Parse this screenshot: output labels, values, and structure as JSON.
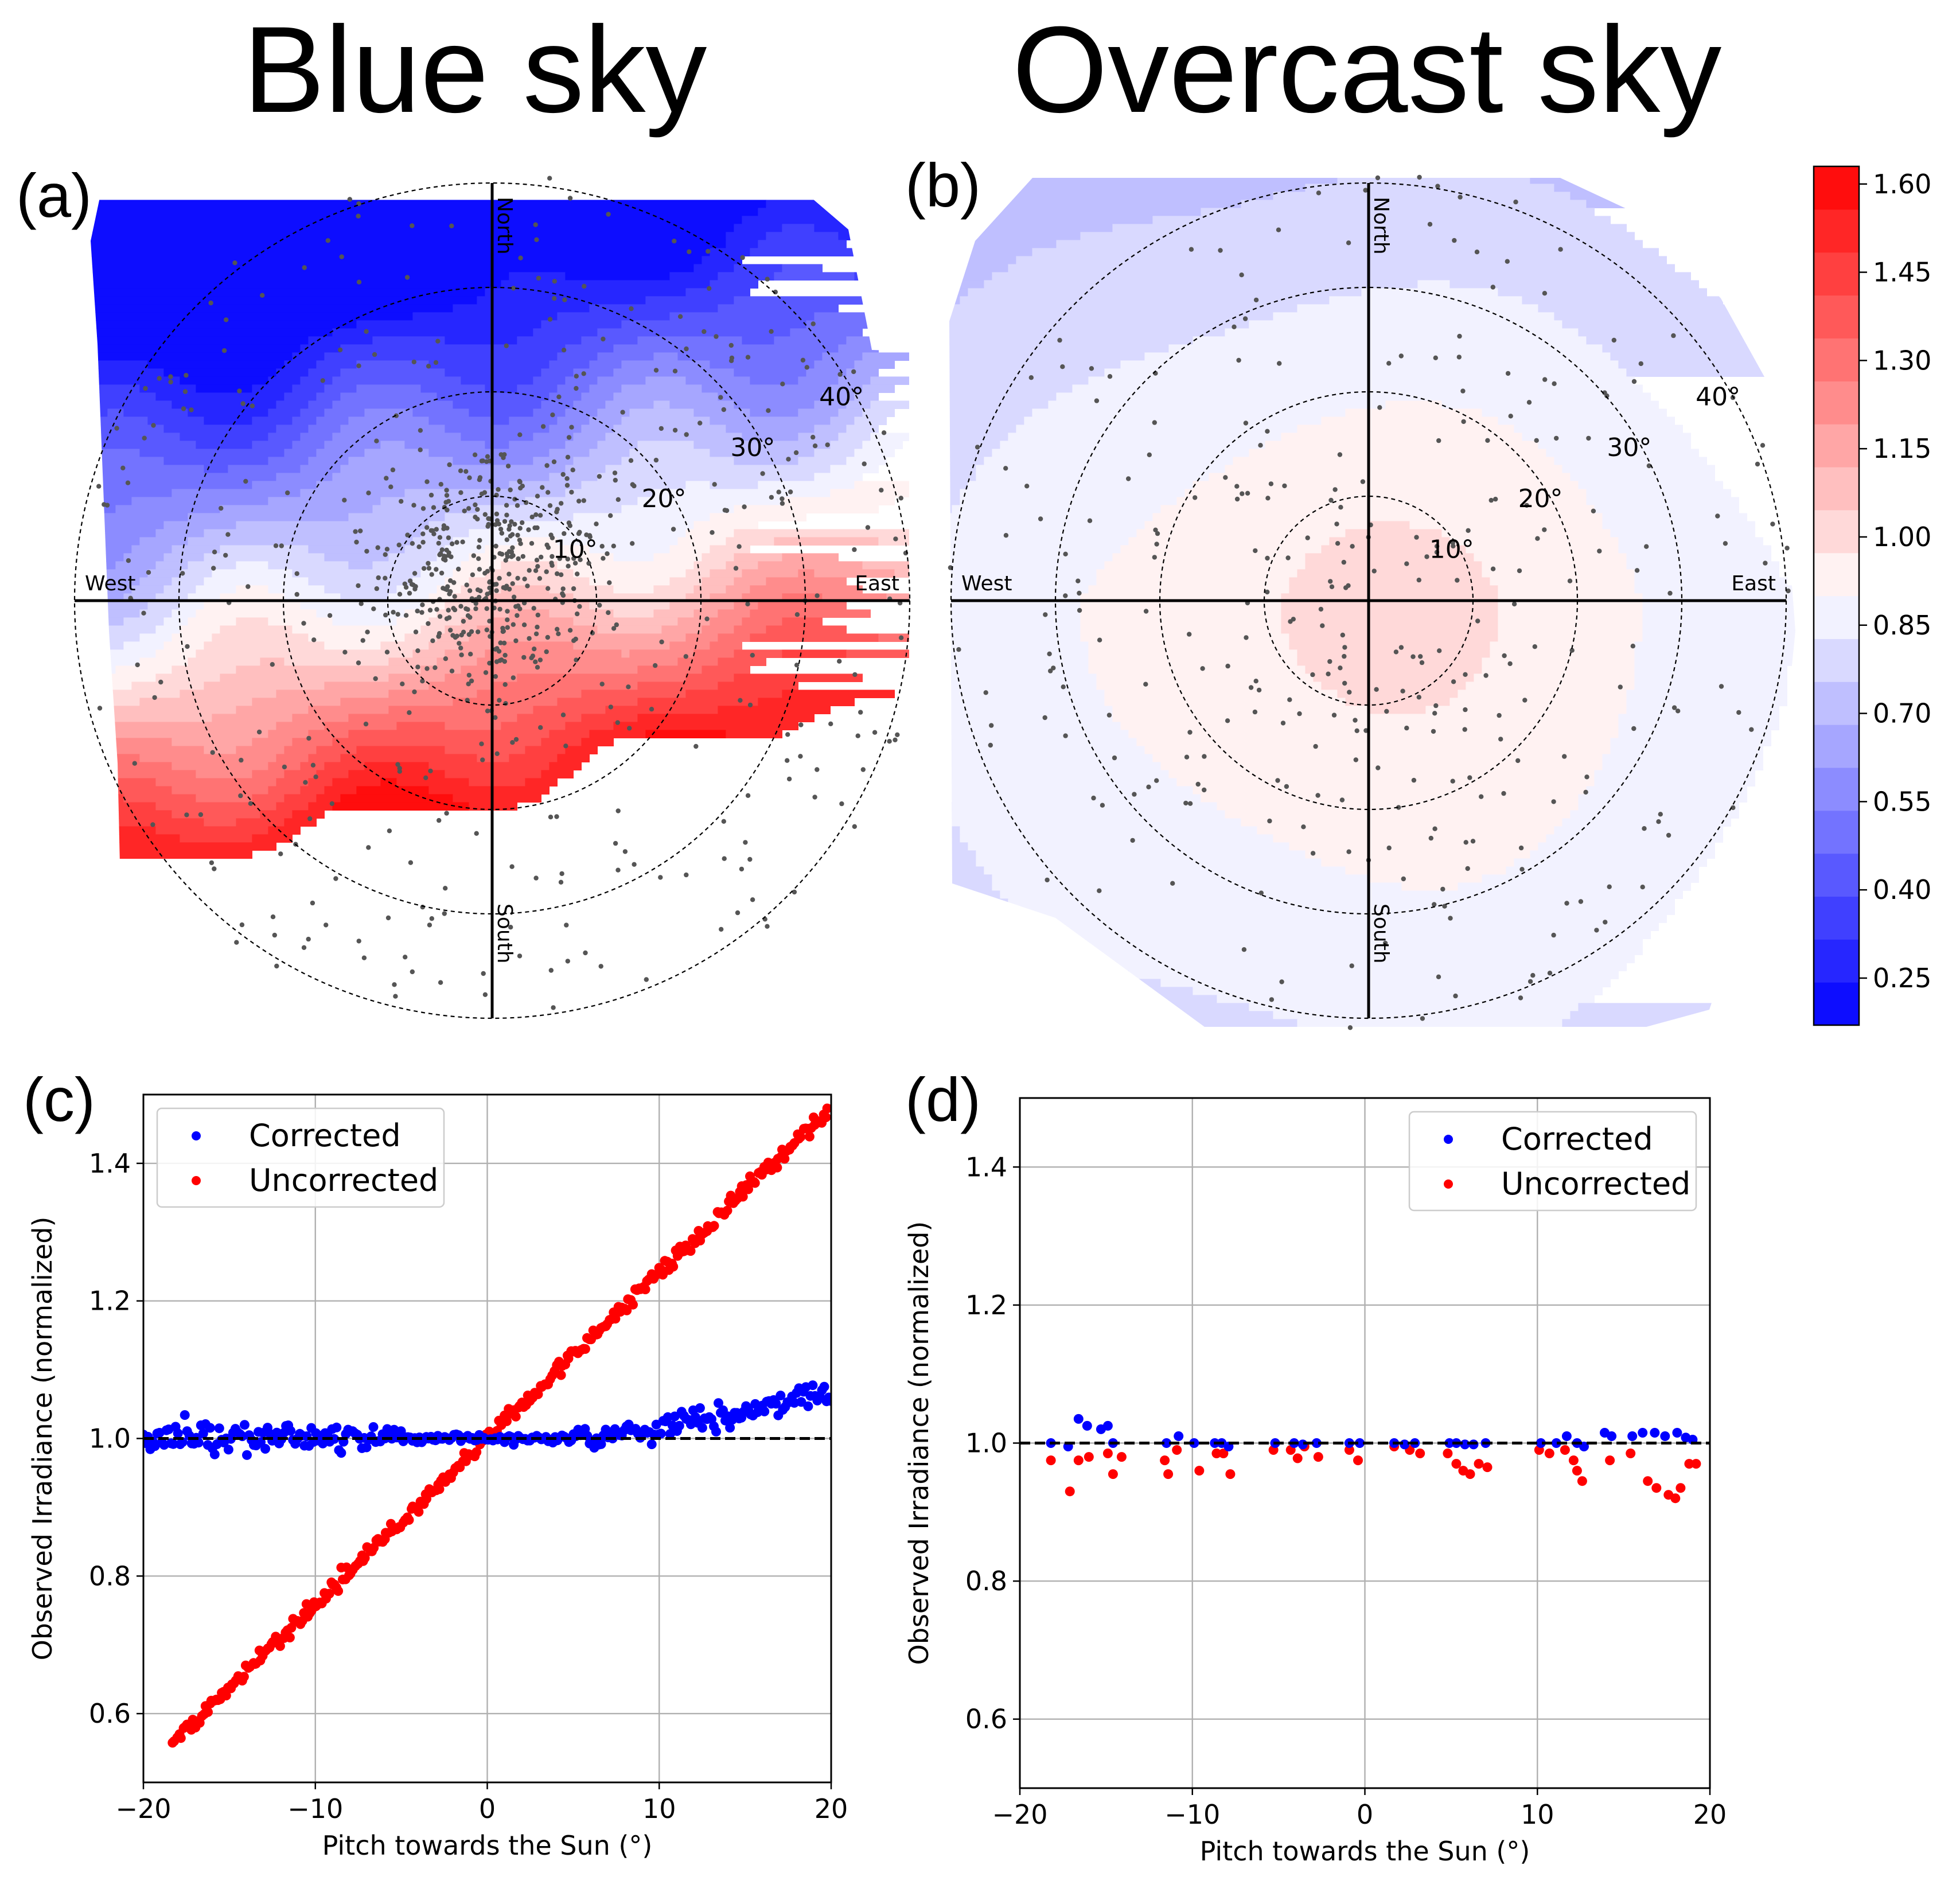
{
  "titles": {
    "left": "Blue sky",
    "right": "Overcast sky"
  },
  "panel_labels": {
    "a": "(a)",
    "b": "(b)",
    "c": "(c)",
    "d": "(d)"
  },
  "colors": {
    "corrected": "#0000ff",
    "uncorrected": "#ff0000",
    "dots": "#555555"
  },
  "chart_data": [
    {
      "id": "a",
      "type": "heatmap",
      "projection": "polar",
      "title": "Blue sky",
      "ring_labels": [
        "10°",
        "20°",
        "30°",
        "40°"
      ],
      "rings_deg": [
        10,
        20,
        30,
        40
      ],
      "direction_labels": {
        "north": "North",
        "south": "South",
        "east": "East",
        "west": "West"
      },
      "colormap": "bwr",
      "value_range": [
        0.17,
        1.63
      ],
      "ratio_north_edge": 0.2,
      "ratio_south_edge": 1.6,
      "description_values": {
        "north_region": 0.25,
        "zenith": 1.0,
        "south_region": 1.55
      }
    },
    {
      "id": "b",
      "type": "heatmap",
      "projection": "polar",
      "title": "Overcast sky",
      "ring_labels": [
        "10°",
        "20°",
        "30°",
        "40°"
      ],
      "rings_deg": [
        10,
        20,
        30,
        40
      ],
      "direction_labels": {
        "north": "North",
        "south": "South",
        "east": "East",
        "west": "West"
      },
      "colormap": "bwr",
      "value_range": [
        0.17,
        1.63
      ],
      "ratio_north_edge": 0.85,
      "ratio_south_edge": 0.9
    },
    {
      "id": "colorbar",
      "type": "colorbar",
      "ticks": [
        "1.60",
        "1.45",
        "1.30",
        "1.15",
        "1.00",
        "0.85",
        "0.70",
        "0.55",
        "0.40",
        "0.25"
      ],
      "tick_values": [
        1.6,
        1.45,
        1.3,
        1.15,
        1.0,
        0.85,
        0.7,
        0.55,
        0.4,
        0.25
      ],
      "min": 0.17,
      "max": 1.63,
      "levels": 20
    },
    {
      "id": "c",
      "type": "scatter",
      "xlabel": "Pitch towards the Sun (°)",
      "ylabel": "Observed Irradiance (normalized)",
      "xlim": [
        -20,
        20
      ],
      "ylim": [
        0.5,
        1.5
      ],
      "xticks": [
        "−20",
        "−10",
        "0",
        "10",
        "20"
      ],
      "xtick_values": [
        -20,
        -10,
        0,
        10,
        20
      ],
      "yticks": [
        "0.6",
        "0.8",
        "1.0",
        "1.2",
        "1.4"
      ],
      "ytick_values": [
        0.6,
        0.8,
        1.0,
        1.2,
        1.4
      ],
      "reference_line": 1.0,
      "legend_position": "upper-left",
      "series": [
        {
          "name": "Corrected",
          "model": "flat_then_rise",
          "x_range": [
            -20,
            20
          ],
          "n": 300,
          "base": 1.0,
          "rise_start": 5,
          "rise_end_value": 1.07,
          "noise": 0.012
        },
        {
          "name": "Uncorrected",
          "model": "linear",
          "x_range": [
            -18.3,
            19.8
          ],
          "n": 320,
          "slope": 0.0241,
          "intercept": 1.0,
          "noise": 0.008
        }
      ]
    },
    {
      "id": "d",
      "type": "scatter",
      "xlabel": "Pitch towards the Sun (°)",
      "ylabel": "Observed Irradiance (normalized)",
      "xlim": [
        -20,
        20
      ],
      "ylim": [
        0.5,
        1.5
      ],
      "xticks": [
        "−20",
        "−10",
        "0",
        "10",
        "20"
      ],
      "xtick_values": [
        -20,
        -10,
        0,
        10,
        20
      ],
      "yticks": [
        "0.6",
        "0.8",
        "1.0",
        "1.2",
        "1.4"
      ],
      "ytick_values": [
        0.6,
        0.8,
        1.0,
        1.2,
        1.4
      ],
      "reference_line": 1.0,
      "legend_position": "upper-right",
      "series": [
        {
          "name": "Corrected",
          "points": [
            [
              -18.2,
              1.0
            ],
            [
              -17.2,
              0.995
            ],
            [
              -16.6,
              1.035
            ],
            [
              -16.1,
              1.025
            ],
            [
              -15.3,
              1.02
            ],
            [
              -14.9,
              1.025
            ],
            [
              -14.6,
              1.0
            ],
            [
              -11.5,
              1.0
            ],
            [
              -10.8,
              1.01
            ],
            [
              -9.9,
              1.0
            ],
            [
              -8.7,
              1.0
            ],
            [
              -8.3,
              1.0
            ],
            [
              -7.9,
              0.995
            ],
            [
              -5.2,
              1.0
            ],
            [
              -4.1,
              1.0
            ],
            [
              -3.6,
              0.998
            ],
            [
              -2.8,
              1.0
            ],
            [
              -0.9,
              1.0
            ],
            [
              -0.3,
              1.0
            ],
            [
              1.7,
              1.0
            ],
            [
              2.3,
              0.998
            ],
            [
              2.9,
              1.0
            ],
            [
              4.9,
              1.0
            ],
            [
              5.3,
              1.0
            ],
            [
              5.8,
              0.998
            ],
            [
              6.3,
              0.998
            ],
            [
              7.0,
              1.0
            ],
            [
              10.2,
              1.0
            ],
            [
              11.1,
              1.0
            ],
            [
              11.7,
              1.01
            ],
            [
              12.3,
              1.0
            ],
            [
              12.7,
              0.995
            ],
            [
              13.9,
              1.015
            ],
            [
              14.3,
              1.01
            ],
            [
              15.5,
              1.01
            ],
            [
              16.1,
              1.015
            ],
            [
              16.8,
              1.015
            ],
            [
              17.4,
              1.01
            ],
            [
              18.1,
              1.015
            ],
            [
              18.6,
              1.008
            ],
            [
              19.0,
              1.005
            ]
          ]
        },
        {
          "name": "Uncorrected",
          "points": [
            [
              -18.2,
              0.975
            ],
            [
              -17.1,
              0.93
            ],
            [
              -16.6,
              0.975
            ],
            [
              -16.0,
              0.98
            ],
            [
              -14.9,
              0.985
            ],
            [
              -14.6,
              0.955
            ],
            [
              -14.1,
              0.98
            ],
            [
              -11.6,
              0.975
            ],
            [
              -11.4,
              0.955
            ],
            [
              -10.9,
              0.99
            ],
            [
              -9.6,
              0.96
            ],
            [
              -8.6,
              0.985
            ],
            [
              -8.2,
              0.985
            ],
            [
              -7.8,
              0.955
            ],
            [
              -5.3,
              0.99
            ],
            [
              -4.3,
              0.99
            ],
            [
              -3.9,
              0.978
            ],
            [
              -3.5,
              0.995
            ],
            [
              -2.7,
              0.98
            ],
            [
              -0.9,
              0.99
            ],
            [
              -0.4,
              0.975
            ],
            [
              1.7,
              0.995
            ],
            [
              2.6,
              0.99
            ],
            [
              3.2,
              0.985
            ],
            [
              4.8,
              0.985
            ],
            [
              5.3,
              0.97
            ],
            [
              5.7,
              0.96
            ],
            [
              6.1,
              0.955
            ],
            [
              6.6,
              0.97
            ],
            [
              7.1,
              0.965
            ],
            [
              10.1,
              0.99
            ],
            [
              10.7,
              0.985
            ],
            [
              11.6,
              0.99
            ],
            [
              12.1,
              0.975
            ],
            [
              12.3,
              0.96
            ],
            [
              12.6,
              0.945
            ],
            [
              14.2,
              0.975
            ],
            [
              15.4,
              0.985
            ],
            [
              16.4,
              0.945
            ],
            [
              16.9,
              0.935
            ],
            [
              17.6,
              0.925
            ],
            [
              18.0,
              0.92
            ],
            [
              18.3,
              0.935
            ],
            [
              18.8,
              0.97
            ],
            [
              19.2,
              0.97
            ]
          ]
        }
      ]
    }
  ]
}
